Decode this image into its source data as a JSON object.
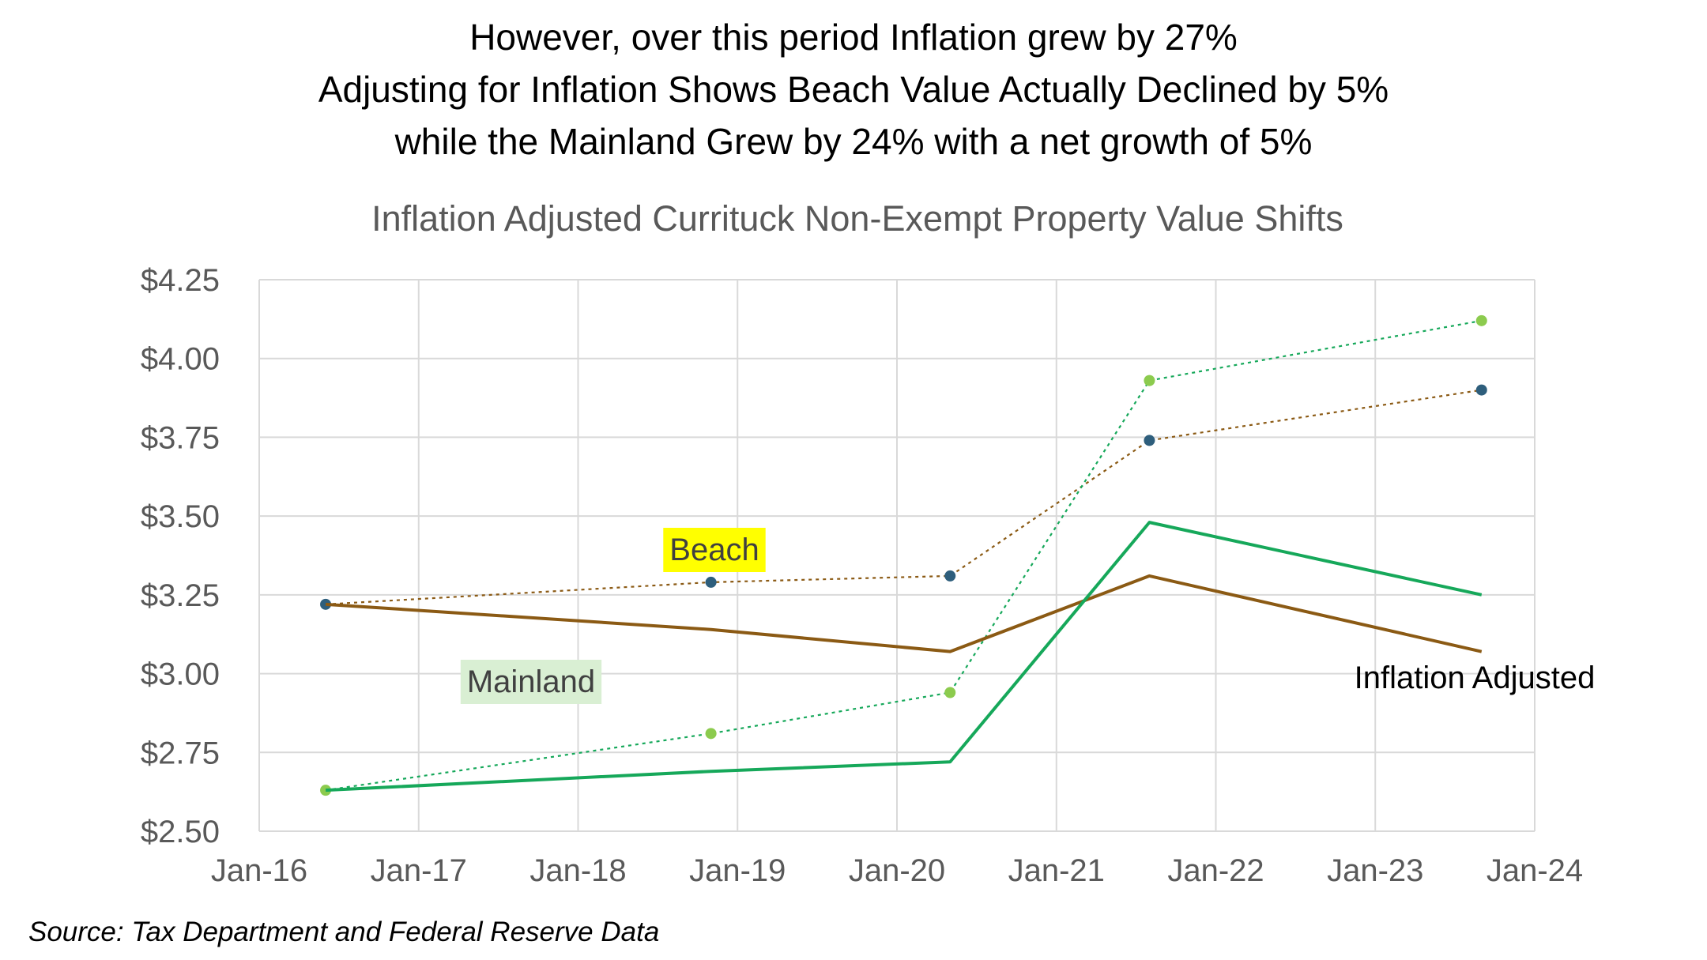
{
  "headlines": [
    "However, over this period Inflation grew by 27%",
    "Adjusting for Inflation Shows Beach Value Actually Declined by 5%",
    "while the Mainland Grew by 24% with a net growth of 5%"
  ],
  "source": "Source:  Tax Department and Federal Reserve Data",
  "colors": {
    "beach": "#8B5A14",
    "beach_markers": "#2E5E7C",
    "mainland": "#16A85A",
    "mainland_markers": "#8CCB4E",
    "beach_label_bg": "#FFFF00",
    "mainland_label_bg": "#D9EFD3",
    "grid": "#D9D9D9",
    "title": "#595959"
  },
  "chart_data": {
    "type": "line",
    "title": "Inflation Adjusted Currituck Non-Exempt Property Value Shifts",
    "xlabel": "",
    "ylabel": "",
    "x_ticks": [
      "Jan-16",
      "Jan-17",
      "Jan-18",
      "Jan-19",
      "Jan-20",
      "Jan-21",
      "Jan-22",
      "Jan-23",
      "Jan-24"
    ],
    "y_ticks": [
      "$2.50",
      "$2.75",
      "$3.00",
      "$3.25",
      "$3.50",
      "$3.75",
      "$4.00",
      "$4.25"
    ],
    "xlim": [
      "2016-01",
      "2024-01"
    ],
    "ylim": [
      2.5,
      4.25
    ],
    "grid": true,
    "annotations": {
      "beach": "Beach",
      "mainland": "Mainland",
      "inflation_adjusted": "Inflation Adjusted"
    },
    "series": [
      {
        "style": "dotted-with-markers",
        "color_key": "beach",
        "points": [
          {
            "x": "2016-06",
            "y": 3.22
          },
          {
            "x": "2018-11",
            "y": 3.29
          },
          {
            "x": "2020-05",
            "y": 3.31
          },
          {
            "x": "2021-08",
            "y": 3.74
          },
          {
            "x": "2023-09",
            "y": 3.9
          }
        ]
      },
      {
        "style": "dotted-with-markers",
        "color_key": "mainland",
        "points": [
          {
            "x": "2016-06",
            "y": 2.63
          },
          {
            "x": "2018-11",
            "y": 2.81
          },
          {
            "x": "2020-05",
            "y": 2.94
          },
          {
            "x": "2021-08",
            "y": 3.93
          },
          {
            "x": "2023-09",
            "y": 4.12
          }
        ]
      },
      {
        "style": "solid",
        "color_key": "beach",
        "points": [
          {
            "x": "2016-06",
            "y": 3.22
          },
          {
            "x": "2018-11",
            "y": 3.14
          },
          {
            "x": "2020-05",
            "y": 3.07
          },
          {
            "x": "2021-08",
            "y": 3.31
          },
          {
            "x": "2023-09",
            "y": 3.07
          }
        ]
      },
      {
        "style": "solid",
        "color_key": "mainland",
        "points": [
          {
            "x": "2016-06",
            "y": 2.63
          },
          {
            "x": "2018-11",
            "y": 2.69
          },
          {
            "x": "2020-05",
            "y": 2.72
          },
          {
            "x": "2021-08",
            "y": 3.48
          },
          {
            "x": "2023-09",
            "y": 3.25
          }
        ]
      }
    ]
  }
}
